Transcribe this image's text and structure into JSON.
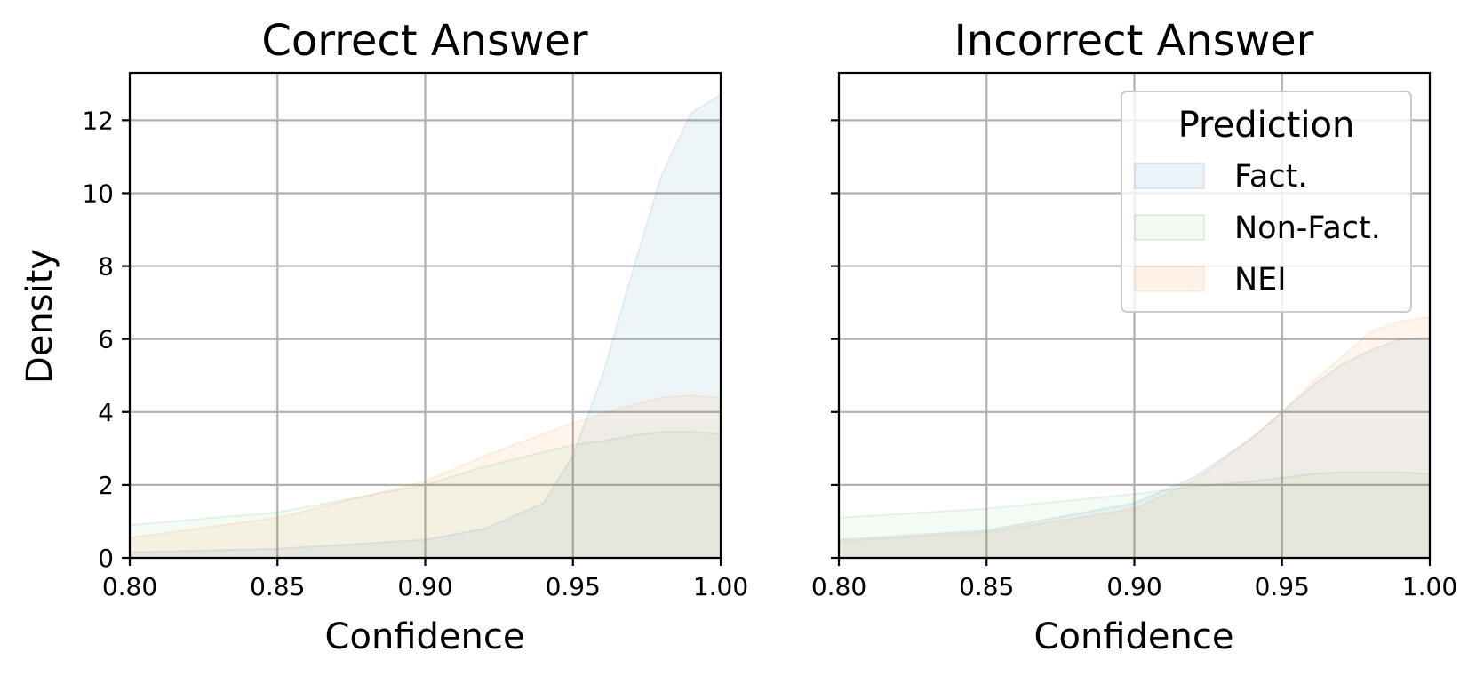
{
  "chart_data": [
    {
      "type": "area",
      "title": "Correct Answer",
      "xlabel": "Confidence",
      "ylabel": "Density",
      "xlim": [
        0.8,
        1.0
      ],
      "ylim": [
        0,
        13.3
      ],
      "xticks": [
        "0.80",
        "0.85",
        "0.90",
        "0.95",
        "1.00"
      ],
      "yticks": [
        "0",
        "2",
        "4",
        "6",
        "8",
        "10",
        "12"
      ],
      "grid": true,
      "x": [
        0.8,
        0.85,
        0.9,
        0.92,
        0.94,
        0.95,
        0.96,
        0.97,
        0.98,
        0.99,
        1.0
      ],
      "series": [
        {
          "name": "Fact.",
          "color": "#1f77b4",
          "values": [
            0.15,
            0.25,
            0.5,
            0.8,
            1.5,
            2.8,
            5.0,
            7.8,
            10.5,
            12.2,
            12.7
          ]
        },
        {
          "name": "Non-Fact.",
          "color": "#2ca02c",
          "values": [
            0.9,
            1.25,
            2.0,
            2.5,
            2.9,
            3.1,
            3.2,
            3.35,
            3.45,
            3.45,
            3.4
          ]
        },
        {
          "name": "NEI",
          "color": "#ff7f0e",
          "values": [
            0.55,
            1.1,
            2.1,
            2.8,
            3.4,
            3.7,
            3.95,
            4.2,
            4.4,
            4.45,
            4.4
          ]
        }
      ]
    },
    {
      "type": "area",
      "title": "Incorrect Answer",
      "xlabel": "Confidence",
      "ylim": [
        0,
        13.3
      ],
      "xlim": [
        0.8,
        1.0
      ],
      "xticks": [
        "0.80",
        "0.85",
        "0.90",
        "0.95",
        "1.00"
      ],
      "grid": true,
      "legend": {
        "title": "Prediction",
        "position": "top-right"
      },
      "x": [
        0.8,
        0.85,
        0.9,
        0.92,
        0.94,
        0.95,
        0.96,
        0.97,
        0.98,
        0.99,
        1.0
      ],
      "series": [
        {
          "name": "Fact.",
          "color": "#1f77b4",
          "values": [
            0.5,
            0.75,
            1.5,
            2.2,
            3.3,
            4.0,
            4.7,
            5.3,
            5.7,
            6.0,
            6.05
          ]
        },
        {
          "name": "Non-Fact.",
          "color": "#2ca02c",
          "values": [
            1.1,
            1.35,
            1.75,
            1.95,
            2.1,
            2.2,
            2.3,
            2.35,
            2.35,
            2.35,
            2.3
          ]
        },
        {
          "name": "NEI",
          "color": "#ff7f0e",
          "values": [
            0.45,
            0.7,
            1.35,
            2.1,
            3.3,
            4.0,
            4.8,
            5.5,
            6.2,
            6.5,
            6.6
          ]
        }
      ]
    }
  ]
}
